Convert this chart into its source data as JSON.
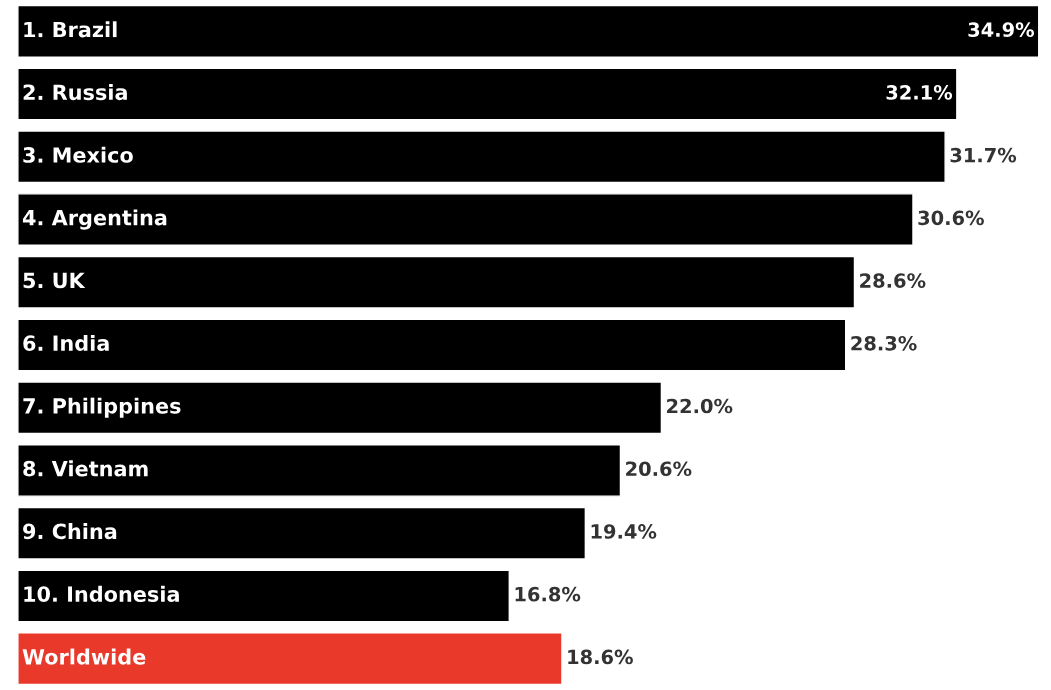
{
  "chart_data": {
    "type": "bar",
    "orientation": "horizontal",
    "categories": [
      "1. Brazil",
      "2. Russia",
      "3. Mexico",
      "4. Argentina",
      "5. UK",
      "6. India",
      "7. Philippines",
      "8. Vietnam",
      "9. China",
      "10. Indonesia",
      "Worldwide"
    ],
    "values": [
      34.9,
      32.1,
      31.7,
      30.6,
      28.6,
      28.3,
      22.0,
      20.6,
      19.4,
      16.8,
      18.6
    ],
    "value_labels": [
      "34.9%",
      "32.1%",
      "31.7%",
      "30.6%",
      "28.6%",
      "28.3%",
      "22.0%",
      "20.6%",
      "19.4%",
      "16.8%",
      "18.6%"
    ],
    "colors": [
      "#000000",
      "#000000",
      "#000000",
      "#000000",
      "#000000",
      "#000000",
      "#000000",
      "#000000",
      "#000000",
      "#000000",
      "#e8392b"
    ]
  }
}
